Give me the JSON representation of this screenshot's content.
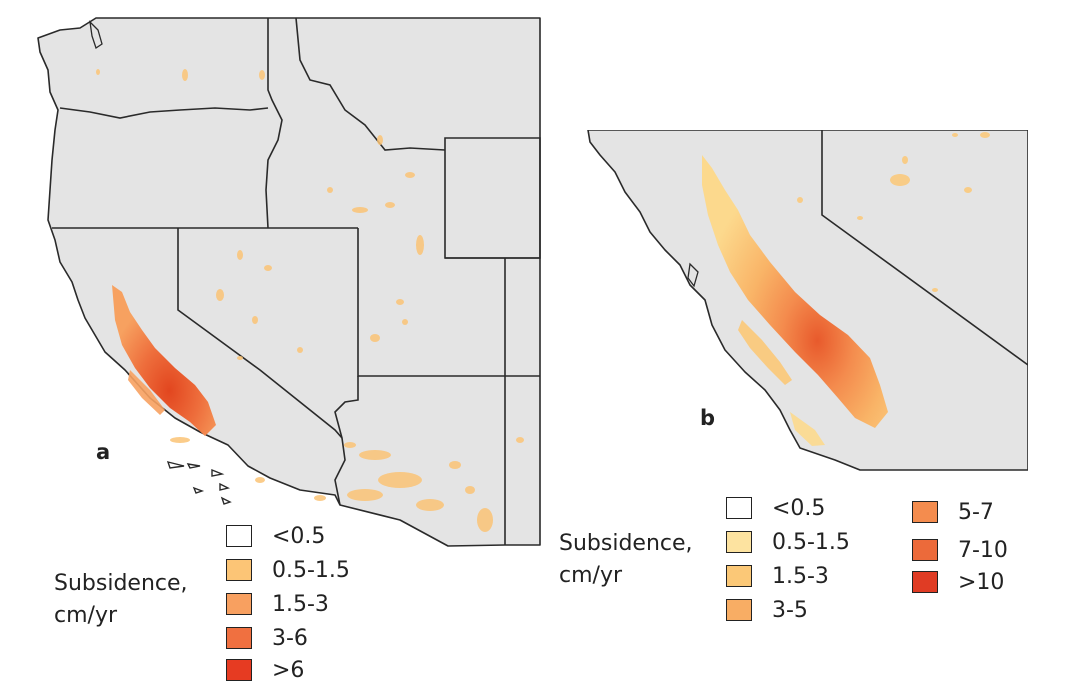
{
  "panels": {
    "a": {
      "label": "a",
      "legend_title": [
        "Subsidence,",
        "cm/yr"
      ],
      "legend": [
        {
          "label": "<0.5",
          "color": "#ffffff"
        },
        {
          "label": "0.5-1.5",
          "color": "#fcc576"
        },
        {
          "label": "1.5-3",
          "color": "#f8a060"
        },
        {
          "label": "3-6",
          "color": "#f07040"
        },
        {
          "label": ">6",
          "color": "#e63b22"
        }
      ]
    },
    "b": {
      "label": "b",
      "legend_title": [
        "Subsidence,",
        "cm/yr"
      ],
      "legend": [
        {
          "label": "<0.5",
          "color": "#ffffff"
        },
        {
          "label": "0.5-1.5",
          "color": "#fde3a0"
        },
        {
          "label": "1.5-3",
          "color": "#fbc877"
        },
        {
          "label": "3-5",
          "color": "#f8ad64"
        },
        {
          "label": "5-7",
          "color": "#f48c4e"
        },
        {
          "label": "7-10",
          "color": "#ec6a3a"
        },
        {
          "label": ">10",
          "color": "#e03c24"
        }
      ]
    }
  },
  "colors": {
    "land": "#e4e4e4",
    "border": "#2a2a2a"
  }
}
